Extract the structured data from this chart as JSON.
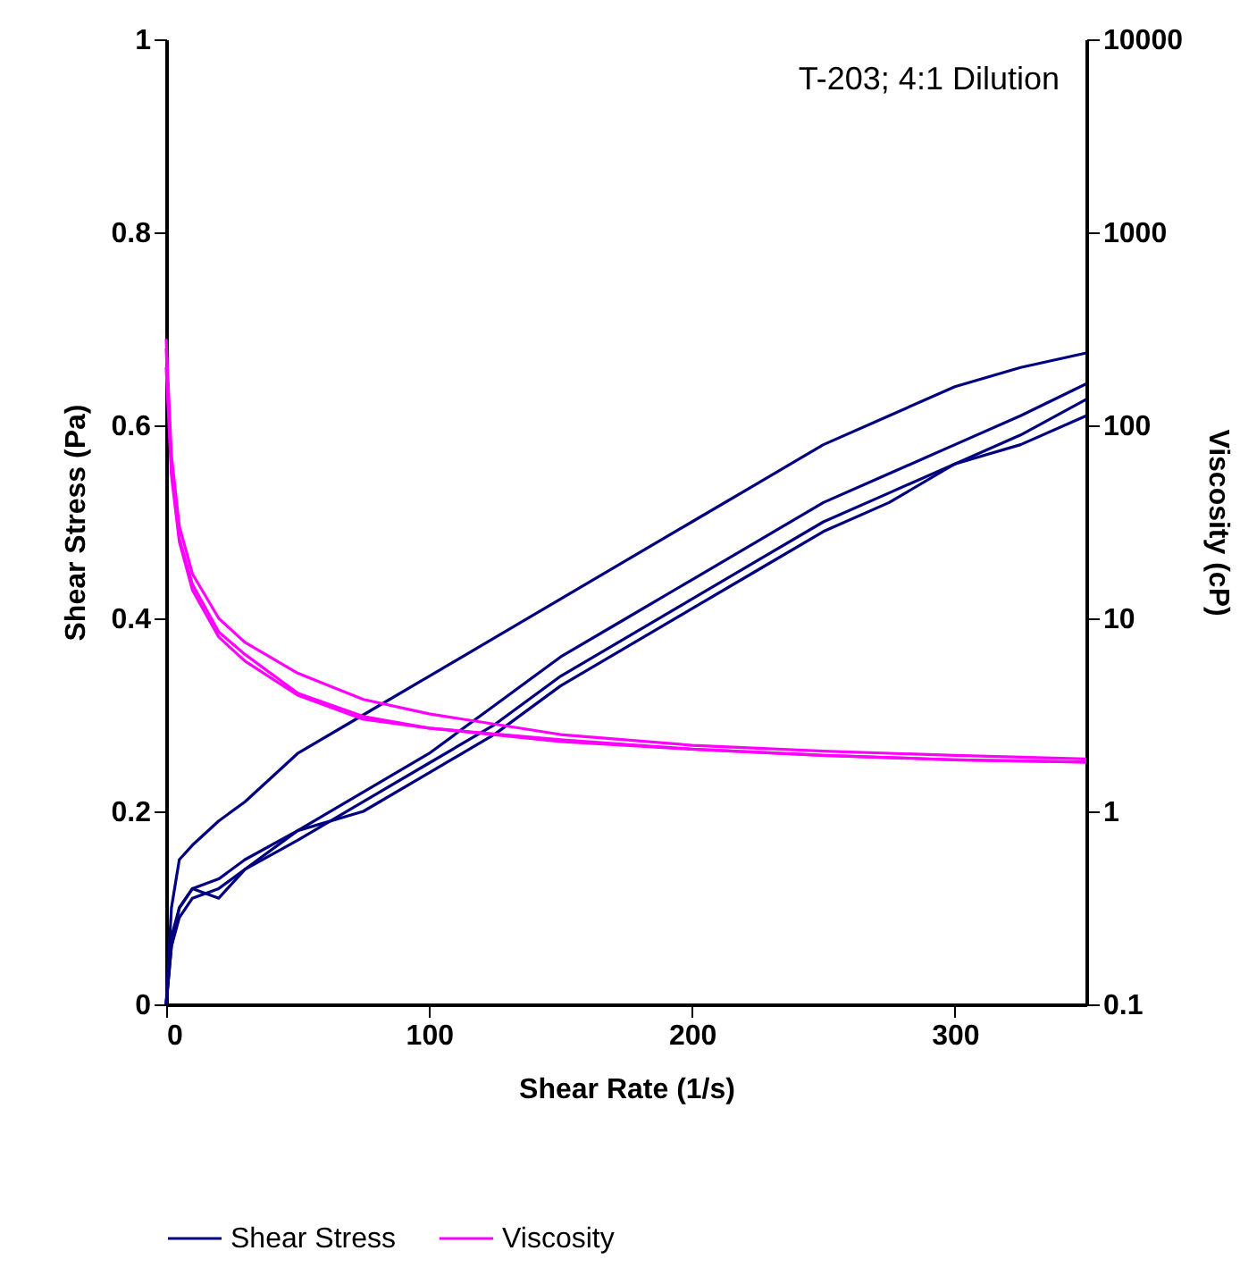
{
  "chart_data": {
    "type": "line",
    "xlabel": "Shear Rate (1/s)",
    "ylabel": "Shear Stress (Pa)",
    "y2label": "Viscosity (cP)",
    "annotations": [
      "T-203; 4:1 Dilution"
    ],
    "xlim": [
      0,
      350
    ],
    "xticks": [
      0,
      100,
      200,
      300
    ],
    "ylim": [
      0,
      1
    ],
    "yticks": [
      0,
      0.2,
      0.4,
      0.6,
      0.8,
      1
    ],
    "y2lim": [
      0.1,
      10000
    ],
    "y2ticks": [
      0.1,
      1,
      10,
      100,
      1000,
      10000
    ],
    "log": "y2",
    "legend": "bottom",
    "grid": false,
    "marker": "none",
    "line_style": "solid",
    "series": [
      {
        "name": "Shear Stress",
        "color": "#000080",
        "x": [
          0,
          2,
          5,
          10,
          20,
          30,
          50,
          75,
          100,
          125,
          150,
          175,
          200,
          225,
          250,
          275,
          300,
          325,
          350
        ],
        "values": [
          0,
          0.1,
          0.15,
          0.165,
          0.19,
          0.21,
          0.26,
          0.3,
          0.34,
          0.38,
          0.42,
          0.46,
          0.5,
          0.54,
          0.58,
          0.61,
          0.64,
          0.66,
          0.675
        ]
      },
      {
        "color": "#000080",
        "x": [
          0,
          2,
          5,
          10,
          20,
          30,
          50,
          75,
          100,
          125,
          150,
          175,
          200,
          225,
          250,
          275,
          300,
          325,
          350
        ],
        "values": [
          0,
          0.07,
          0.1,
          0.12,
          0.13,
          0.15,
          0.18,
          0.22,
          0.26,
          0.31,
          0.36,
          0.4,
          0.44,
          0.48,
          0.52,
          0.55,
          0.58,
          0.61,
          0.643
        ]
      },
      {
        "color": "#000080",
        "x": [
          0,
          2,
          5,
          10,
          20,
          30,
          50,
          75,
          100,
          125,
          150,
          175,
          200,
          225,
          250,
          275,
          300,
          325,
          350
        ],
        "values": [
          0,
          0.06,
          0.09,
          0.11,
          0.12,
          0.14,
          0.17,
          0.21,
          0.25,
          0.29,
          0.34,
          0.38,
          0.42,
          0.46,
          0.5,
          0.53,
          0.56,
          0.59,
          0.627
        ]
      },
      {
        "color": "#000080",
        "x": [
          0,
          2,
          5,
          10,
          20,
          30,
          50,
          75,
          100,
          125,
          150,
          175,
          200,
          225,
          250,
          275,
          300,
          325,
          350
        ],
        "values": [
          0,
          0.06,
          0.1,
          0.12,
          0.11,
          0.14,
          0.18,
          0.2,
          0.24,
          0.28,
          0.33,
          0.37,
          0.41,
          0.45,
          0.49,
          0.52,
          0.56,
          0.58,
          0.61
        ]
      },
      {
        "name": "Viscosity",
        "color": "#ff00ff",
        "axis": "y2",
        "x": [
          0,
          2,
          5,
          10,
          20,
          30,
          50,
          75,
          100,
          150,
          200,
          250,
          300,
          350
        ],
        "values": [
          280,
          70,
          30,
          17,
          10,
          7.5,
          5.2,
          3.8,
          3.2,
          2.5,
          2.2,
          2.05,
          1.95,
          1.87
        ]
      },
      {
        "color": "#ff00ff",
        "axis": "y2",
        "x": [
          0,
          2,
          5,
          10,
          20,
          30,
          50,
          75,
          100,
          150,
          200,
          250,
          300,
          350
        ],
        "values": [
          250,
          60,
          26,
          15,
          8.5,
          6.5,
          4.1,
          3.1,
          2.7,
          2.35,
          2.1,
          1.95,
          1.85,
          1.8
        ]
      },
      {
        "color": "#ff00ff",
        "axis": "y2",
        "x": [
          0,
          2,
          5,
          10,
          20,
          30,
          50,
          75,
          100,
          150,
          200,
          250,
          300,
          350
        ],
        "values": [
          200,
          55,
          25,
          14,
          8,
          6,
          4,
          3,
          2.7,
          2.3,
          2.1,
          1.95,
          1.85,
          1.8
        ]
      }
    ]
  }
}
